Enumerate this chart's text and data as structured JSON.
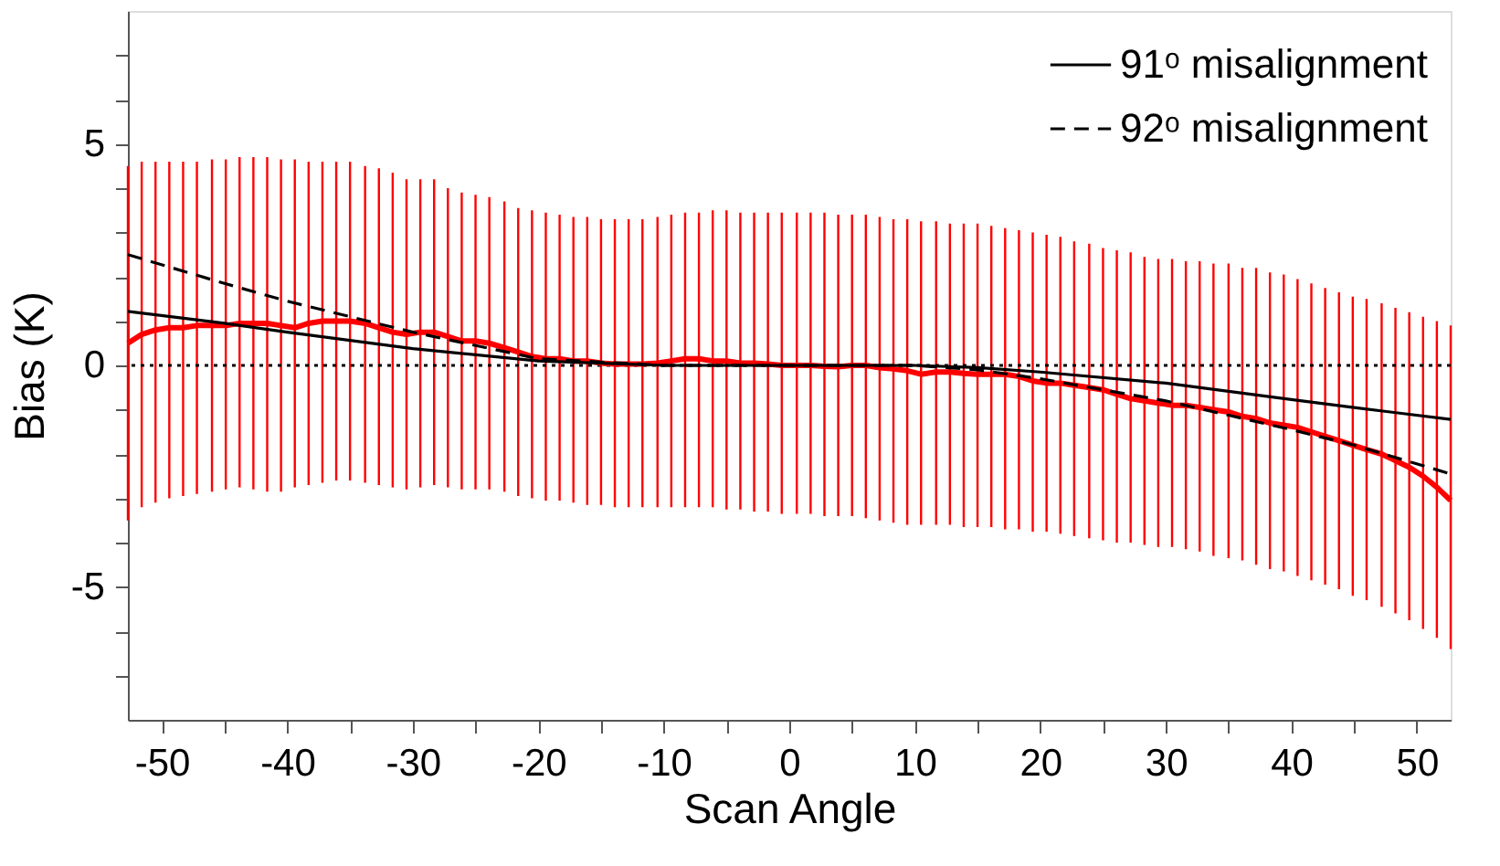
{
  "chart_data": {
    "type": "line",
    "xlabel": "Scan Angle",
    "ylabel": "Bias (K)",
    "xlim": [
      -52.7,
      52.7
    ],
    "ylim": [
      -8,
      8
    ],
    "xticks": [
      -50,
      {
        "value": -45,
        "label": null
      },
      -40,
      {
        "value": -35,
        "label": null
      },
      -30,
      {
        "value": -25,
        "label": null
      },
      -20,
      {
        "value": -15,
        "label": null
      },
      -10,
      {
        "value": -5,
        "label": null
      },
      0,
      {
        "value": 5,
        "label": null
      },
      10,
      {
        "value": 15,
        "label": null
      },
      20,
      {
        "value": 25,
        "label": null
      },
      30,
      {
        "value": 35,
        "label": null
      },
      40,
      {
        "value": 45,
        "label": null
      },
      50
    ],
    "yticks": [
      {
        "value": -7,
        "label": null
      },
      {
        "value": -6,
        "label": null
      },
      -5,
      {
        "value": -4,
        "label": null
      },
      {
        "value": -3,
        "label": null
      },
      {
        "value": -2,
        "label": null
      },
      {
        "value": -1,
        "label": null
      },
      0,
      {
        "value": 1,
        "label": null
      },
      {
        "value": 2,
        "label": null
      },
      {
        "value": 3,
        "label": null
      },
      {
        "value": 4,
        "label": null
      },
      5,
      {
        "value": 6,
        "label": null
      },
      {
        "value": 7,
        "label": null
      }
    ],
    "grid": false,
    "legend": "top right",
    "marker": "none",
    "ref_lines": [
      {
        "axis": "y",
        "value": 0,
        "color": "#000000",
        "line_style": "dotted"
      }
    ],
    "series": [
      {
        "color": "#ff0000",
        "line_style": "solid",
        "x": [
          -52.7,
          -51.6,
          -50.5,
          -49.4,
          -48.3,
          -47.2,
          -46.0,
          -44.9,
          -43.8,
          -42.7,
          -41.6,
          -40.5,
          -39.4,
          -38.3,
          -37.2,
          -36.1,
          -35.0,
          -33.8,
          -32.7,
          -31.6,
          -30.5,
          -29.4,
          -28.3,
          -27.2,
          -26.1,
          -25.0,
          -23.9,
          -22.7,
          -21.6,
          -20.5,
          -19.4,
          -18.3,
          -17.2,
          -16.1,
          -15.0,
          -13.9,
          -12.8,
          -11.7,
          -10.5,
          -9.4,
          -8.3,
          -7.2,
          -6.1,
          -5.0,
          -3.9,
          -2.8,
          -1.7,
          -0.6,
          0.6,
          1.7,
          2.8,
          3.9,
          5.0,
          6.1,
          7.2,
          8.3,
          9.4,
          10.5,
          11.7,
          12.8,
          13.9,
          15.0,
          16.1,
          17.2,
          18.3,
          19.4,
          20.5,
          21.6,
          22.7,
          23.9,
          25.0,
          26.1,
          27.2,
          28.3,
          29.4,
          30.5,
          31.6,
          32.7,
          33.8,
          35.0,
          36.1,
          37.2,
          38.3,
          39.4,
          40.5,
          41.6,
          42.7,
          43.8,
          44.9,
          46.0,
          47.2,
          48.3,
          49.4,
          50.5,
          51.6,
          52.7
        ],
        "values": [
          0.5,
          0.7,
          0.8,
          0.85,
          0.85,
          0.9,
          0.9,
          0.9,
          0.95,
          0.95,
          0.95,
          0.9,
          0.85,
          0.95,
          1.0,
          1.0,
          1.0,
          0.95,
          0.85,
          0.75,
          0.7,
          0.75,
          0.75,
          0.65,
          0.55,
          0.55,
          0.5,
          0.4,
          0.3,
          0.2,
          0.15,
          0.15,
          0.1,
          0.1,
          0.05,
          0.03,
          0.03,
          0.03,
          0.05,
          0.1,
          0.15,
          0.15,
          0.1,
          0.1,
          0.05,
          0.05,
          0.03,
          0.0,
          0.0,
          0.0,
          -0.02,
          -0.03,
          0.0,
          0.0,
          -0.05,
          -0.08,
          -0.12,
          -0.2,
          -0.15,
          -0.15,
          -0.18,
          -0.2,
          -0.2,
          -0.2,
          -0.25,
          -0.35,
          -0.4,
          -0.4,
          -0.45,
          -0.5,
          -0.55,
          -0.65,
          -0.75,
          -0.8,
          -0.85,
          -0.9,
          -0.9,
          -0.95,
          -1.0,
          -1.05,
          -1.15,
          -1.2,
          -1.3,
          -1.35,
          -1.4,
          -1.5,
          -1.6,
          -1.7,
          -1.8,
          -1.9,
          -2.0,
          -2.15,
          -2.3,
          -2.5,
          -2.75,
          -3.05
        ],
        "errors": [
          [
            -3.5,
            4.5
          ],
          [
            -3.2,
            4.6
          ],
          [
            -3.1,
            4.6
          ],
          [
            -3.0,
            4.6
          ],
          [
            -2.95,
            4.6
          ],
          [
            -2.9,
            4.6
          ],
          [
            -2.85,
            4.65
          ],
          [
            -2.8,
            4.65
          ],
          [
            -2.75,
            4.7
          ],
          [
            -2.8,
            4.7
          ],
          [
            -2.85,
            4.7
          ],
          [
            -2.85,
            4.65
          ],
          [
            -2.75,
            4.65
          ],
          [
            -2.7,
            4.6
          ],
          [
            -2.65,
            4.6
          ],
          [
            -2.6,
            4.6
          ],
          [
            -2.6,
            4.6
          ],
          [
            -2.65,
            4.5
          ],
          [
            -2.7,
            4.45
          ],
          [
            -2.75,
            4.35
          ],
          [
            -2.8,
            4.2
          ],
          [
            -2.75,
            4.2
          ],
          [
            -2.7,
            4.2
          ],
          [
            -2.75,
            4.0
          ],
          [
            -2.8,
            3.9
          ],
          [
            -2.8,
            3.85
          ],
          [
            -2.8,
            3.8
          ],
          [
            -2.85,
            3.7
          ],
          [
            -2.95,
            3.55
          ],
          [
            -3.0,
            3.5
          ],
          [
            -3.05,
            3.45
          ],
          [
            -3.05,
            3.4
          ],
          [
            -3.1,
            3.35
          ],
          [
            -3.15,
            3.35
          ],
          [
            -3.15,
            3.3
          ],
          [
            -3.2,
            3.3
          ],
          [
            -3.2,
            3.3
          ],
          [
            -3.2,
            3.3
          ],
          [
            -3.2,
            3.35
          ],
          [
            -3.2,
            3.4
          ],
          [
            -3.2,
            3.45
          ],
          [
            -3.2,
            3.45
          ],
          [
            -3.2,
            3.5
          ],
          [
            -3.25,
            3.5
          ],
          [
            -3.25,
            3.45
          ],
          [
            -3.3,
            3.45
          ],
          [
            -3.3,
            3.45
          ],
          [
            -3.35,
            3.45
          ],
          [
            -3.35,
            3.45
          ],
          [
            -3.35,
            3.45
          ],
          [
            -3.4,
            3.45
          ],
          [
            -3.4,
            3.4
          ],
          [
            -3.4,
            3.4
          ],
          [
            -3.45,
            3.4
          ],
          [
            -3.5,
            3.35
          ],
          [
            -3.55,
            3.3
          ],
          [
            -3.6,
            3.3
          ],
          [
            -3.6,
            3.25
          ],
          [
            -3.6,
            3.25
          ],
          [
            -3.6,
            3.2
          ],
          [
            -3.65,
            3.2
          ],
          [
            -3.65,
            3.2
          ],
          [
            -3.65,
            3.15
          ],
          [
            -3.7,
            3.1
          ],
          [
            -3.7,
            3.05
          ],
          [
            -3.75,
            3.0
          ],
          [
            -3.75,
            2.95
          ],
          [
            -3.8,
            2.9
          ],
          [
            -3.85,
            2.8
          ],
          [
            -3.9,
            2.75
          ],
          [
            -3.95,
            2.65
          ],
          [
            -4.0,
            2.6
          ],
          [
            -4.0,
            2.55
          ],
          [
            -4.05,
            2.45
          ],
          [
            -4.1,
            2.4
          ],
          [
            -4.1,
            2.4
          ],
          [
            -4.15,
            2.35
          ],
          [
            -4.2,
            2.35
          ],
          [
            -4.3,
            2.3
          ],
          [
            -4.35,
            2.3
          ],
          [
            -4.4,
            2.2
          ],
          [
            -4.5,
            2.2
          ],
          [
            -4.6,
            2.1
          ],
          [
            -4.65,
            2.05
          ],
          [
            -4.75,
            1.95
          ],
          [
            -4.85,
            1.85
          ],
          [
            -4.95,
            1.75
          ],
          [
            -5.05,
            1.65
          ],
          [
            -5.2,
            1.55
          ],
          [
            -5.3,
            1.5
          ],
          [
            -5.45,
            1.4
          ],
          [
            -5.6,
            1.3
          ],
          [
            -5.75,
            1.2
          ],
          [
            -5.95,
            1.1
          ],
          [
            -6.15,
            1.0
          ],
          [
            -6.4,
            0.9
          ]
        ]
      },
      {
        "name": "91ᵒ misalignment",
        "color": "#000000",
        "line_style": "solid",
        "x": [
          -52.7,
          -45,
          -40,
          -30,
          -20,
          -10,
          0,
          10,
          15,
          20,
          30,
          40,
          45,
          52.7
        ],
        "values": [
          1.22,
          0.95,
          0.75,
          0.38,
          0.1,
          0.0,
          0.0,
          0.0,
          -0.05,
          -0.15,
          -0.4,
          -0.77,
          -0.95,
          -1.22
        ]
      },
      {
        "name": "92ᵒ misalignment",
        "color": "#000000",
        "line_style": "dashed",
        "x": [
          -52.7,
          -45,
          -40,
          -30,
          -20,
          -10,
          0,
          10,
          15,
          20,
          30,
          40,
          45,
          52.7
        ],
        "values": [
          2.5,
          1.85,
          1.45,
          0.75,
          0.15,
          0.0,
          0.0,
          0.0,
          -0.1,
          -0.3,
          -0.8,
          -1.45,
          -1.8,
          -2.45
        ]
      }
    ]
  }
}
